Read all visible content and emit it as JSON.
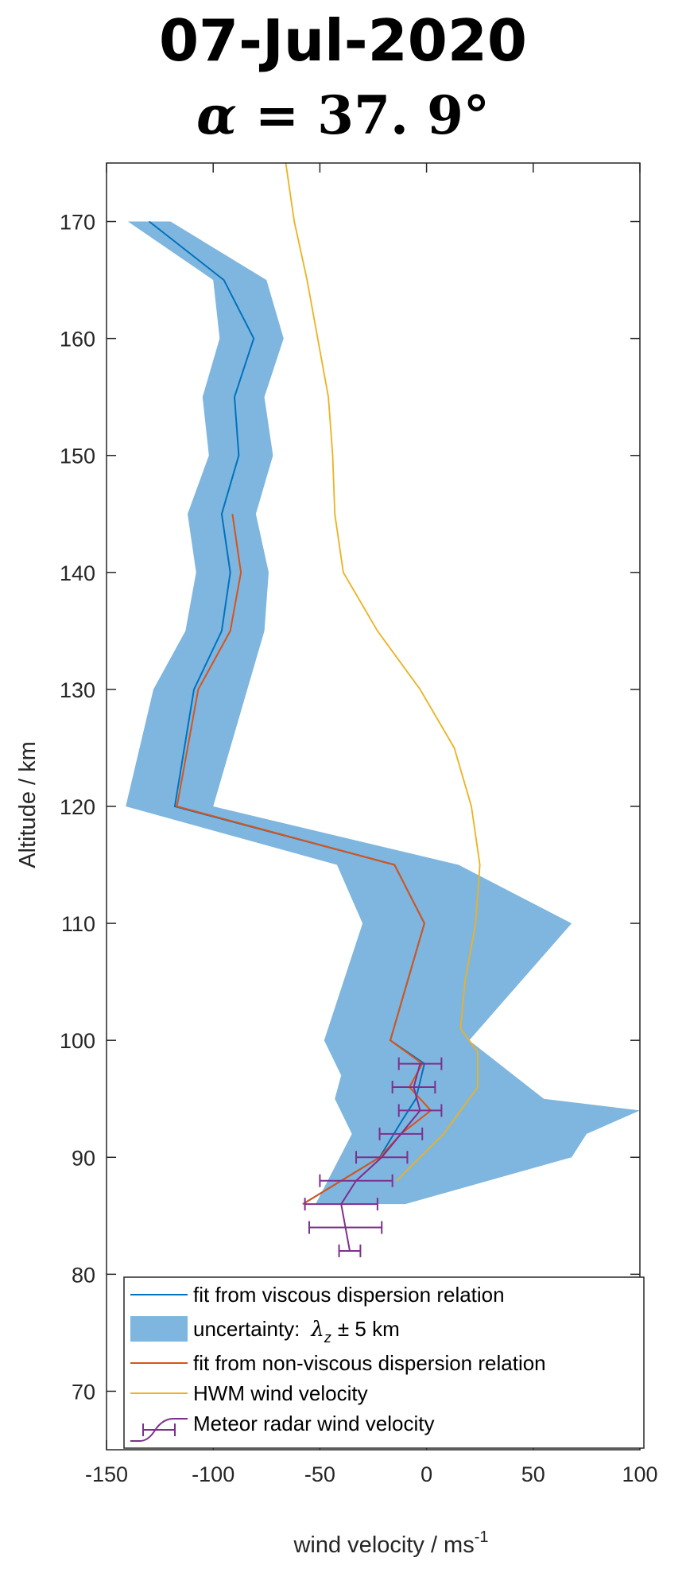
{
  "chart_data": {
    "type": "line",
    "title": "07-Jul-2020",
    "subtitle": {
      "symbol": "α",
      "value": "= 37. 9°"
    },
    "xlabel": "wind velocity / ms",
    "xlabel_sup": "-1",
    "ylabel": "Altitude / km",
    "xlim": [
      -150,
      100
    ],
    "ylim": [
      65,
      175
    ],
    "xticks": [
      -150,
      -100,
      -50,
      0,
      50,
      100
    ],
    "yticks": [
      70,
      80,
      90,
      100,
      110,
      120,
      130,
      140,
      150,
      160,
      170
    ],
    "grid": false,
    "legend_position": "bottom-left",
    "uncertainty_band": {
      "name": "uncertainty:",
      "name_math": "λ",
      "name_sub": "z",
      "name_rest": "± 5 km",
      "color": "#7fb6df",
      "upper": [
        [
          -120,
          170
        ],
        [
          -75,
          165
        ],
        [
          -67,
          160
        ],
        [
          -76,
          155
        ],
        [
          -72,
          150
        ],
        [
          -80,
          145
        ],
        [
          -74,
          140
        ],
        [
          -76,
          135
        ],
        [
          -100,
          120
        ],
        [
          15,
          115
        ],
        [
          68,
          110
        ],
        [
          20,
          100
        ],
        [
          55,
          95
        ],
        [
          100,
          94
        ],
        [
          75,
          92
        ],
        [
          68,
          90
        ],
        [
          -10,
          86
        ]
      ],
      "lower": [
        [
          -140,
          170
        ],
        [
          -100,
          165
        ],
        [
          -97,
          160
        ],
        [
          -105,
          155
        ],
        [
          -102,
          150
        ],
        [
          -112,
          145
        ],
        [
          -108,
          140
        ],
        [
          -113,
          135
        ],
        [
          -128,
          130
        ],
        [
          -141,
          120
        ],
        [
          -42,
          115
        ],
        [
          -30,
          110
        ],
        [
          -48,
          100
        ],
        [
          -40,
          97
        ],
        [
          -43,
          95
        ],
        [
          -35,
          92
        ],
        [
          -52,
          86
        ]
      ]
    },
    "series": [
      {
        "name": "fit from viscous dispersion relation",
        "color": "#0072bd",
        "points": [
          [
            -130,
            170
          ],
          [
            -95,
            165
          ],
          [
            -81,
            160
          ],
          [
            -90,
            155
          ],
          [
            -88,
            150
          ],
          [
            -96,
            145
          ],
          [
            -92,
            140
          ],
          [
            -96,
            135
          ],
          [
            -109,
            130
          ],
          [
            -118,
            120
          ],
          [
            -15,
            115
          ],
          [
            -1,
            110
          ],
          [
            -17,
            100
          ],
          [
            -1,
            98
          ],
          [
            -5,
            95
          ],
          [
            -12,
            93
          ],
          [
            -22,
            90
          ],
          [
            -58,
            86
          ]
        ]
      },
      {
        "name": "fit from non-viscous dispersion relation",
        "color": "#d95319",
        "points": [
          [
            -91,
            145
          ],
          [
            -87,
            140
          ],
          [
            -92,
            135
          ],
          [
            -107,
            130
          ],
          [
            -117,
            120
          ],
          [
            -15,
            115
          ],
          [
            -1,
            110
          ],
          [
            -17,
            100
          ],
          [
            -2,
            98
          ],
          [
            -8,
            96
          ],
          [
            2,
            94
          ],
          [
            -12,
            92
          ],
          [
            -22,
            90
          ],
          [
            -58,
            86
          ]
        ]
      },
      {
        "name": "HWM wind velocity",
        "color": "#edb120",
        "points": [
          [
            -66,
            175
          ],
          [
            -62,
            170
          ],
          [
            -56,
            165
          ],
          [
            -51,
            160
          ],
          [
            -46,
            155
          ],
          [
            -44,
            150
          ],
          [
            -43,
            145
          ],
          [
            -39,
            140
          ],
          [
            -23,
            135
          ],
          [
            -3,
            130
          ],
          [
            13,
            125
          ],
          [
            21,
            120
          ],
          [
            25,
            115
          ],
          [
            23,
            110
          ],
          [
            18,
            105
          ],
          [
            16,
            101
          ],
          [
            24,
            99
          ],
          [
            24,
            96
          ],
          [
            16,
            94
          ],
          [
            8,
            92
          ],
          [
            -3,
            90
          ],
          [
            -14,
            88
          ]
        ]
      },
      {
        "name": "Meteor radar wind velocity",
        "color": "#7e2f8e",
        "points": [
          [
            -3,
            98
          ],
          [
            -6,
            96
          ],
          [
            -3,
            94
          ],
          [
            -12,
            92
          ],
          [
            -21,
            90
          ],
          [
            -33,
            88
          ],
          [
            -40,
            86
          ],
          [
            -38,
            84
          ],
          [
            -36,
            82
          ]
        ],
        "xerr_low": [
          10,
          10,
          10,
          10,
          12,
          17,
          17,
          17,
          5
        ],
        "xerr_high": [
          10,
          10,
          10,
          10,
          12,
          17,
          17,
          17,
          5
        ]
      }
    ]
  }
}
